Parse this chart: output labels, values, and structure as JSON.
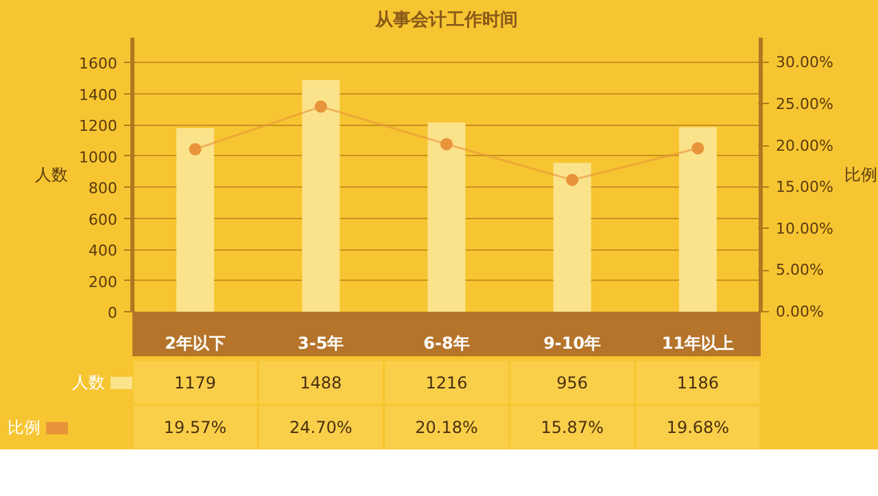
{
  "chart_data": {
    "type": "bar",
    "title": "从事会计工作时间",
    "ylabel": "人数",
    "y2label": "比例",
    "categories": [
      "2年以下",
      "3-5年",
      "6-8年",
      "9-10年",
      "11年以上"
    ],
    "series": [
      {
        "name": "人数",
        "color": "#fbe38c",
        "values": [
          1179,
          1488,
          1216,
          956,
          1186
        ],
        "value_labels": [
          "1179",
          "1488",
          "1216",
          "956",
          "1186"
        ]
      },
      {
        "name": "比例",
        "type": "line",
        "axis": "y2",
        "color": "#e8943a",
        "marker": "circle",
        "values": [
          19.57,
          24.7,
          20.18,
          15.87,
          19.68
        ],
        "value_labels": [
          "19.57%",
          "24.70%",
          "20.18%",
          "15.87%",
          "19.68%"
        ]
      }
    ],
    "ylim": [
      0,
      1760
    ],
    "yticks": [
      0,
      200,
      400,
      600,
      800,
      1000,
      1200,
      1400,
      1600
    ],
    "y2lim": [
      0,
      33
    ],
    "y2ticks": [
      {
        "value": 0,
        "label": "0.00%"
      },
      {
        "value": 5,
        "label": "5.00%"
      },
      {
        "value": 10,
        "label": "10.00%"
      },
      {
        "value": 15,
        "label": "15.00%"
      },
      {
        "value": 20,
        "label": "20.00%"
      },
      {
        "value": 25,
        "label": "25.00%"
      },
      {
        "value": 30,
        "label": "30.00%"
      }
    ],
    "grid": "y",
    "legend": "bottom left"
  }
}
